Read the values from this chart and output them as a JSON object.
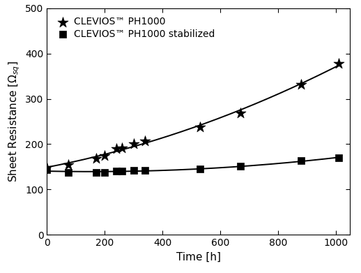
{
  "series1_label": "CLEVIOS™ PH1000",
  "series2_label": "CLEVIOS™ PH1000 stabilized",
  "series1_x": [
    0,
    75,
    170,
    200,
    240,
    260,
    300,
    340,
    530,
    670,
    880,
    1010
  ],
  "series1_y": [
    148,
    155,
    168,
    175,
    190,
    192,
    200,
    207,
    238,
    268,
    332,
    378
  ],
  "series2_x": [
    0,
    75,
    170,
    200,
    240,
    260,
    300,
    340,
    530,
    670,
    880,
    1010
  ],
  "series2_y": [
    143,
    138,
    137,
    138,
    140,
    140,
    142,
    142,
    145,
    151,
    163,
    170
  ],
  "xlabel": "Time [h]",
  "ylabel": "Sheet Resistance [$\\Omega_{sq}$]",
  "xlim": [
    0,
    1050
  ],
  "ylim": [
    0,
    500
  ],
  "xticks": [
    0,
    200,
    400,
    600,
    800,
    1000
  ],
  "yticks": [
    0,
    100,
    200,
    300,
    400,
    500
  ],
  "line_color": "#000000",
  "background_color": "#ffffff",
  "axis_fontsize": 11,
  "tick_fontsize": 10,
  "legend_fontsize": 10,
  "star_size": 130,
  "square_size": 45,
  "linewidth": 1.4,
  "figsize": [
    5.18,
    3.91
  ],
  "dpi": 100
}
